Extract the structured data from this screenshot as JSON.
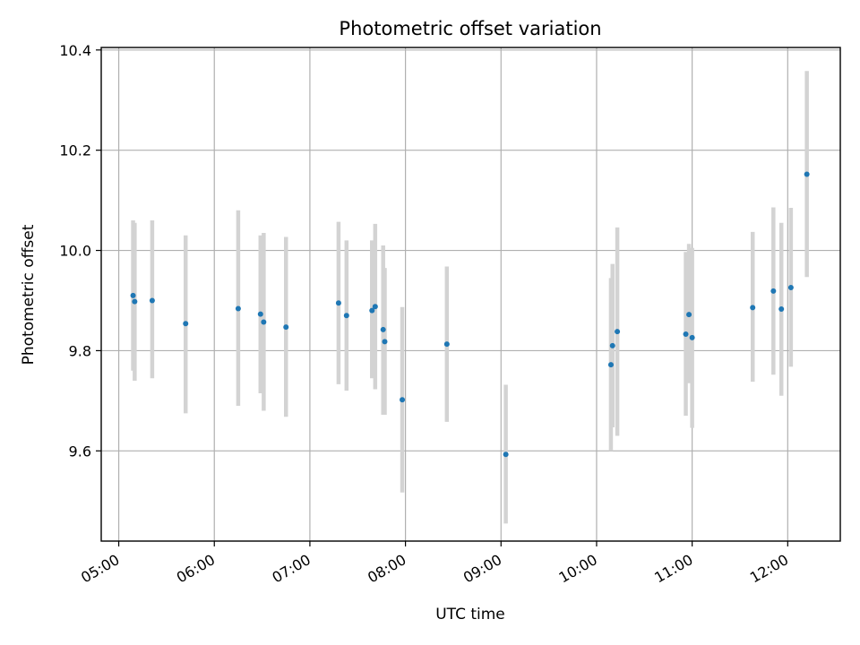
{
  "chart_data": {
    "type": "scatter",
    "title": "Photometric offset variation",
    "xlabel": "UTC time",
    "ylabel": "Photometric offset",
    "x_ticks": [
      "05:00",
      "06:00",
      "07:00",
      "08:00",
      "09:00",
      "10:00",
      "11:00",
      "12:00"
    ],
    "y_ticks": [
      "9.6",
      "9.8",
      "10.0",
      "10.2",
      "10.4"
    ],
    "xlim": [
      "04:49",
      "12:33"
    ],
    "ylim": [
      9.42,
      10.405
    ],
    "grid": true,
    "colors": {
      "points": "#1f77b4",
      "errorbars": "#d3d3d3",
      "grid": "#b0b0b0"
    },
    "points": [
      {
        "x": "05:09",
        "y": 9.91,
        "err_low": 9.76,
        "err_high": 10.06
      },
      {
        "x": "05:10",
        "y": 9.898,
        "err_low": 9.74,
        "err_high": 10.055
      },
      {
        "x": "05:21",
        "y": 9.9,
        "err_low": 9.745,
        "err_high": 10.06
      },
      {
        "x": "05:42",
        "y": 9.854,
        "err_low": 9.675,
        "err_high": 10.03
      },
      {
        "x": "06:15",
        "y": 9.884,
        "err_low": 9.69,
        "err_high": 10.08
      },
      {
        "x": "06:29",
        "y": 9.873,
        "err_low": 9.715,
        "err_high": 10.03
      },
      {
        "x": "06:31",
        "y": 9.857,
        "err_low": 9.68,
        "err_high": 10.035
      },
      {
        "x": "06:45",
        "y": 9.847,
        "err_low": 9.668,
        "err_high": 10.027
      },
      {
        "x": "07:18",
        "y": 9.895,
        "err_low": 9.733,
        "err_high": 10.057
      },
      {
        "x": "07:23",
        "y": 9.87,
        "err_low": 9.72,
        "err_high": 10.02
      },
      {
        "x": "07:39",
        "y": 9.88,
        "err_low": 9.745,
        "err_high": 10.02
      },
      {
        "x": "07:41",
        "y": 9.888,
        "err_low": 9.723,
        "err_high": 10.053
      },
      {
        "x": "07:46",
        "y": 9.842,
        "err_low": 9.672,
        "err_high": 10.01
      },
      {
        "x": "07:47",
        "y": 9.818,
        "err_low": 9.672,
        "err_high": 9.965
      },
      {
        "x": "07:58",
        "y": 9.702,
        "err_low": 9.517,
        "err_high": 9.887
      },
      {
        "x": "08:26",
        "y": 9.813,
        "err_low": 9.658,
        "err_high": 9.968
      },
      {
        "x": "09:03",
        "y": 9.593,
        "err_low": 9.455,
        "err_high": 9.732
      },
      {
        "x": "10:09",
        "y": 9.772,
        "err_low": 9.6,
        "err_high": 9.945
      },
      {
        "x": "10:10",
        "y": 9.81,
        "err_low": 9.647,
        "err_high": 9.973
      },
      {
        "x": "10:13",
        "y": 9.838,
        "err_low": 9.63,
        "err_high": 10.046
      },
      {
        "x": "10:56",
        "y": 9.833,
        "err_low": 9.67,
        "err_high": 9.997
      },
      {
        "x": "10:58",
        "y": 9.872,
        "err_low": 9.735,
        "err_high": 10.013
      },
      {
        "x": "11:00",
        "y": 9.826,
        "err_low": 9.646,
        "err_high": 10.005
      },
      {
        "x": "11:38",
        "y": 9.886,
        "err_low": 9.738,
        "err_high": 10.037
      },
      {
        "x": "11:51",
        "y": 9.919,
        "err_low": 9.752,
        "err_high": 10.086
      },
      {
        "x": "11:56",
        "y": 9.883,
        "err_low": 9.71,
        "err_high": 10.055
      },
      {
        "x": "12:02",
        "y": 9.926,
        "err_low": 9.768,
        "err_high": 10.085
      },
      {
        "x": "12:12",
        "y": 10.152,
        "err_low": 9.947,
        "err_high": 10.358
      }
    ]
  }
}
